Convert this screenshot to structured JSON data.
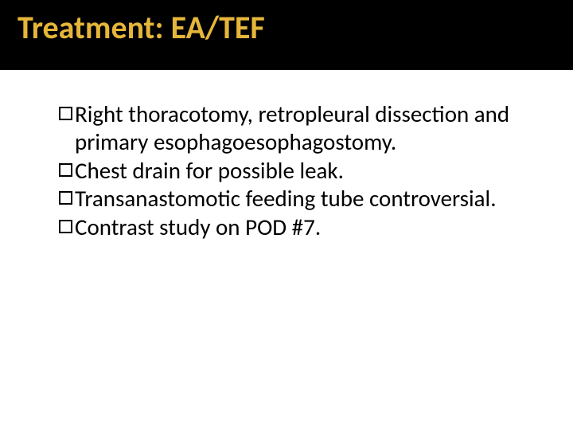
{
  "slide": {
    "title": "Treatment: EA/TEF",
    "title_color": "#e6b63a",
    "title_bg": "#000000",
    "title_fontsize": 40,
    "bullets": [
      "Right thoracotomy, retropleural dissection and primary esophagoesophagostomy.",
      "Chest drain for possible leak.",
      "Transanastomotic feeding tube controversial.",
      "Contrast study on POD #7."
    ],
    "bullet_marker": "hollow-square",
    "bullet_marker_color": "#000000",
    "body_fontsize": 29,
    "body_color": "#000000",
    "background_color": "#ffffff"
  }
}
